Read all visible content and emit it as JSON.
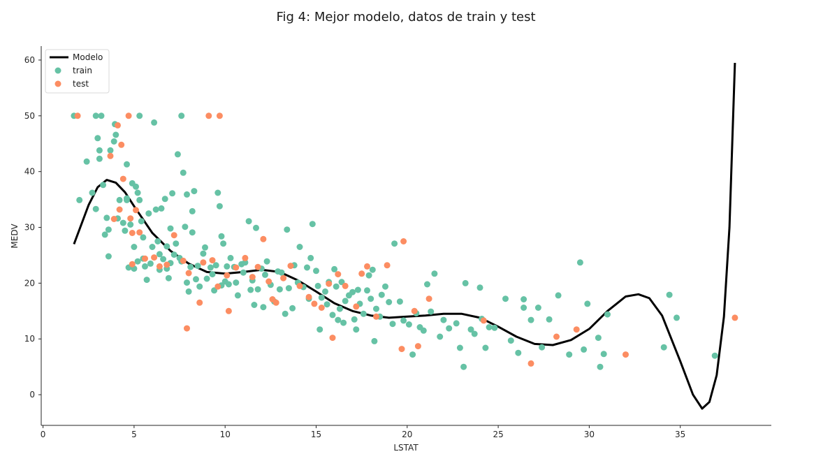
{
  "chart_data": {
    "type": "scatter",
    "title": "Fig 4: Mejor modelo, datos de train y test",
    "xlabel": "LSTAT",
    "ylabel": "MEDV",
    "xlim": [
      -0.1,
      40
    ],
    "ylim": [
      -5.5,
      62.5
    ],
    "xticks": [
      0,
      5,
      10,
      15,
      20,
      25,
      30,
      35
    ],
    "yticks": [
      0,
      10,
      20,
      30,
      40,
      50,
      60
    ],
    "grid": false,
    "legend": "top-left",
    "legend_entries": [
      "Modelo",
      "train",
      "test"
    ],
    "colors": {
      "model": "#000000",
      "train": "#66c2a5",
      "test": "#fc8d62"
    },
    "series": [
      {
        "name": "Modelo",
        "kind": "line",
        "points": [
          [
            1.7,
            27
          ],
          [
            2.5,
            34
          ],
          [
            3,
            37.2
          ],
          [
            3.5,
            38.5
          ],
          [
            4,
            38
          ],
          [
            4.5,
            36.3
          ],
          [
            5,
            33.8
          ],
          [
            6,
            29
          ],
          [
            7,
            25.8
          ],
          [
            8,
            23.5
          ],
          [
            9,
            22
          ],
          [
            10,
            21.7
          ],
          [
            11,
            22
          ],
          [
            12,
            22.4
          ],
          [
            13,
            22
          ],
          [
            14,
            20.5
          ],
          [
            15,
            18.5
          ],
          [
            16,
            16.4
          ],
          [
            17,
            15
          ],
          [
            18,
            14.2
          ],
          [
            19,
            13.8
          ],
          [
            20,
            14
          ],
          [
            21,
            14.2
          ],
          [
            22,
            14.5
          ],
          [
            23,
            14.5
          ],
          [
            24,
            13.8
          ],
          [
            25,
            12.2
          ],
          [
            26,
            10.4
          ],
          [
            27,
            9.1
          ],
          [
            28,
            8.9
          ],
          [
            29,
            9.8
          ],
          [
            30,
            11.8
          ],
          [
            31,
            15
          ],
          [
            32,
            17.6
          ],
          [
            32.7,
            18
          ],
          [
            33.3,
            17.3
          ],
          [
            34,
            14.2
          ],
          [
            35,
            6
          ],
          [
            35.7,
            0
          ],
          [
            36.2,
            -2.5
          ],
          [
            36.6,
            -1.3
          ],
          [
            37,
            3.5
          ],
          [
            37.4,
            14
          ],
          [
            37.7,
            30
          ],
          [
            38,
            59.5
          ]
        ]
      },
      {
        "name": "train",
        "kind": "scatter",
        "points": [
          [
            1.7,
            50
          ],
          [
            2,
            34.9
          ],
          [
            2.4,
            41.8
          ],
          [
            2.7,
            36.2
          ],
          [
            2.9,
            50
          ],
          [
            2.9,
            33.3
          ],
          [
            3,
            46
          ],
          [
            3.1,
            43.8
          ],
          [
            3.1,
            42.3
          ],
          [
            3.2,
            50
          ],
          [
            3.3,
            37.6
          ],
          [
            3.4,
            28.7
          ],
          [
            3.5,
            31.7
          ],
          [
            3.6,
            29.6
          ],
          [
            3.6,
            24.8
          ],
          [
            3.7,
            43.8
          ],
          [
            3.9,
            45.4
          ],
          [
            3.95,
            48.5
          ],
          [
            4,
            46.6
          ],
          [
            4.1,
            31.6
          ],
          [
            4.2,
            34.9
          ],
          [
            4.4,
            30.8
          ],
          [
            4.5,
            29.4
          ],
          [
            4.6,
            35.2
          ],
          [
            4.6,
            34.9
          ],
          [
            4.6,
            41.3
          ],
          [
            4.7,
            22.8
          ],
          [
            4.8,
            30.5
          ],
          [
            4.9,
            37.9
          ],
          [
            5,
            26.5
          ],
          [
            5,
            22.6
          ],
          [
            5.1,
            37.3
          ],
          [
            5.2,
            23.9
          ],
          [
            5.2,
            36.2
          ],
          [
            5.3,
            50
          ],
          [
            5.3,
            34.9
          ],
          [
            5.4,
            31.1
          ],
          [
            5.5,
            24.4
          ],
          [
            5.5,
            28.2
          ],
          [
            5.6,
            23
          ],
          [
            5.7,
            20.6
          ],
          [
            5.8,
            32.5
          ],
          [
            5.9,
            23.5
          ],
          [
            6,
            26.5
          ],
          [
            6.1,
            48.8
          ],
          [
            6.2,
            33.2
          ],
          [
            6.3,
            27.5
          ],
          [
            6.4,
            22.4
          ],
          [
            6.4,
            25.2
          ],
          [
            6.5,
            33.4
          ],
          [
            6.6,
            24.3
          ],
          [
            6.7,
            35.1
          ],
          [
            6.8,
            26.6
          ],
          [
            6.8,
            22.6
          ],
          [
            6.9,
            20.9
          ],
          [
            7,
            23.6
          ],
          [
            7,
            29.8
          ],
          [
            7.1,
            36.1
          ],
          [
            7.2,
            25.1
          ],
          [
            7.3,
            27.1
          ],
          [
            7.4,
            43.1
          ],
          [
            7.5,
            24.5
          ],
          [
            7.6,
            23.9
          ],
          [
            7.6,
            50
          ],
          [
            7.7,
            39.8
          ],
          [
            7.8,
            30.1
          ],
          [
            7.9,
            20.1
          ],
          [
            7.9,
            35.9
          ],
          [
            8,
            18.5
          ],
          [
            8.1,
            22.9
          ],
          [
            8.2,
            32.9
          ],
          [
            8.2,
            29.1
          ],
          [
            8.3,
            36.5
          ],
          [
            8.4,
            20.7
          ],
          [
            8.5,
            23.1
          ],
          [
            8.6,
            19.4
          ],
          [
            8.8,
            25.3
          ],
          [
            8.9,
            26.4
          ],
          [
            9,
            20.8
          ],
          [
            9.2,
            22.8
          ],
          [
            9.3,
            21.6
          ],
          [
            9.4,
            18.7
          ],
          [
            9.5,
            23.2
          ],
          [
            9.6,
            36.2
          ],
          [
            9.7,
            33.8
          ],
          [
            9.8,
            19.6
          ],
          [
            9.8,
            28.4
          ],
          [
            9.9,
            27.1
          ],
          [
            10,
            20.3
          ],
          [
            10.1,
            23
          ],
          [
            10.2,
            19.8
          ],
          [
            10.3,
            24.5
          ],
          [
            10.5,
            22.9
          ],
          [
            10.6,
            20.1
          ],
          [
            10.7,
            17.8
          ],
          [
            10.9,
            23.4
          ],
          [
            11,
            21.9
          ],
          [
            11.1,
            23.7
          ],
          [
            11.3,
            31.1
          ],
          [
            11.4,
            18.8
          ],
          [
            11.5,
            20.5
          ],
          [
            11.6,
            16.1
          ],
          [
            11.7,
            29.9
          ],
          [
            11.8,
            18.9
          ],
          [
            12,
            22.6
          ],
          [
            12.1,
            15.7
          ],
          [
            12.2,
            21.5
          ],
          [
            12.3,
            23.9
          ],
          [
            12.5,
            19.7
          ],
          [
            12.7,
            16.7
          ],
          [
            12.9,
            22.1
          ],
          [
            13,
            18.9
          ],
          [
            13.1,
            21.9
          ],
          [
            13.3,
            14.5
          ],
          [
            13.4,
            29.6
          ],
          [
            13.5,
            19.1
          ],
          [
            13.7,
            15.5
          ],
          [
            13.8,
            23.2
          ],
          [
            14,
            20.1
          ],
          [
            14.1,
            26.5
          ],
          [
            14.3,
            19.3
          ],
          [
            14.5,
            22.8
          ],
          [
            14.6,
            17.2
          ],
          [
            14.7,
            24.5
          ],
          [
            14.8,
            30.6
          ],
          [
            15,
            22.2
          ],
          [
            15.1,
            19.5
          ],
          [
            15.2,
            11.7
          ],
          [
            15.3,
            17.4
          ],
          [
            15.5,
            18.5
          ],
          [
            15.6,
            16.2
          ],
          [
            15.7,
            20.2
          ],
          [
            15.9,
            14.3
          ],
          [
            16,
            22.5
          ],
          [
            16.1,
            19.4
          ],
          [
            16.2,
            13.4
          ],
          [
            16.3,
            15.4
          ],
          [
            16.4,
            20.2
          ],
          [
            16.5,
            12.9
          ],
          [
            16.6,
            16.8
          ],
          [
            16.8,
            17.8
          ],
          [
            17,
            18.4
          ],
          [
            17.1,
            13.5
          ],
          [
            17.2,
            11.7
          ],
          [
            17.3,
            18.8
          ],
          [
            17.4,
            16.3
          ],
          [
            17.6,
            14.5
          ],
          [
            17.8,
            18.7
          ],
          [
            17.9,
            21.4
          ],
          [
            18,
            17.2
          ],
          [
            18.1,
            22.4
          ],
          [
            18.2,
            9.6
          ],
          [
            18.3,
            15.4
          ],
          [
            18.5,
            14
          ],
          [
            18.6,
            17.9
          ],
          [
            18.8,
            19.4
          ],
          [
            19,
            16.6
          ],
          [
            19.2,
            12.7
          ],
          [
            19.3,
            27.1
          ],
          [
            19.6,
            16.7
          ],
          [
            19.8,
            13.3
          ],
          [
            20.1,
            12.6
          ],
          [
            20.3,
            7.2
          ],
          [
            20.5,
            14.6
          ],
          [
            20.7,
            12.1
          ],
          [
            20.9,
            11.5
          ],
          [
            21.1,
            19.8
          ],
          [
            21.3,
            14.9
          ],
          [
            21.5,
            21.7
          ],
          [
            21.8,
            10.4
          ],
          [
            22,
            13.4
          ],
          [
            22.3,
            11.9
          ],
          [
            22.7,
            12.8
          ],
          [
            22.9,
            8.4
          ],
          [
            23.1,
            5
          ],
          [
            23.2,
            20
          ],
          [
            23.5,
            11.7
          ],
          [
            23.7,
            10.9
          ],
          [
            24,
            19.2
          ],
          [
            24.1,
            13.6
          ],
          [
            24.3,
            8.4
          ],
          [
            24.5,
            12.1
          ],
          [
            24.8,
            12
          ],
          [
            25.4,
            17.2
          ],
          [
            25.7,
            9.7
          ],
          [
            26.1,
            7.5
          ],
          [
            26.4,
            15.6
          ],
          [
            26.4,
            17.1
          ],
          [
            26.8,
            13.4
          ],
          [
            27.2,
            15.6
          ],
          [
            27.4,
            8.5
          ],
          [
            27.8,
            13.5
          ],
          [
            28.3,
            17.8
          ],
          [
            28.9,
            7.2
          ],
          [
            29.5,
            23.7
          ],
          [
            29.7,
            8.1
          ],
          [
            29.9,
            16.3
          ],
          [
            30.5,
            10.2
          ],
          [
            30.6,
            5
          ],
          [
            30.8,
            7.3
          ],
          [
            31,
            14.4
          ],
          [
            34.1,
            8.5
          ],
          [
            34.4,
            17.9
          ],
          [
            34.8,
            13.8
          ],
          [
            36.9,
            7
          ]
        ]
      },
      {
        "name": "test",
        "kind": "scatter",
        "points": [
          [
            1.9,
            50
          ],
          [
            3.7,
            42.8
          ],
          [
            3.9,
            31.5
          ],
          [
            4.1,
            48.3
          ],
          [
            4.2,
            33.2
          ],
          [
            4.3,
            44.8
          ],
          [
            4.4,
            38.7
          ],
          [
            4.7,
            50
          ],
          [
            4.8,
            31.6
          ],
          [
            4.9,
            29
          ],
          [
            4.9,
            23.4
          ],
          [
            5.1,
            33.1
          ],
          [
            5.3,
            29.1
          ],
          [
            5.6,
            24.4
          ],
          [
            6.1,
            24.6
          ],
          [
            6.4,
            23
          ],
          [
            6.8,
            23.3
          ],
          [
            7.2,
            28.6
          ],
          [
            7.7,
            24
          ],
          [
            7.9,
            11.9
          ],
          [
            8,
            21.8
          ],
          [
            8.6,
            16.5
          ],
          [
            8.8,
            23.7
          ],
          [
            9.1,
            50
          ],
          [
            9.3,
            24.1
          ],
          [
            9.6,
            19.4
          ],
          [
            9.7,
            50
          ],
          [
            10.1,
            21.4
          ],
          [
            10.2,
            15
          ],
          [
            10.6,
            22.8
          ],
          [
            11.1,
            24.5
          ],
          [
            11.5,
            21.1
          ],
          [
            11.8,
            22.9
          ],
          [
            12.1,
            27.9
          ],
          [
            12.4,
            20.3
          ],
          [
            12.6,
            17.1
          ],
          [
            12.8,
            16.5
          ],
          [
            13.2,
            20.9
          ],
          [
            13.6,
            23.1
          ],
          [
            14.1,
            19.5
          ],
          [
            14.6,
            17.5
          ],
          [
            14.9,
            16.3
          ],
          [
            15.3,
            15.6
          ],
          [
            15.7,
            19.9
          ],
          [
            15.9,
            10.2
          ],
          [
            16.2,
            21.6
          ],
          [
            16.6,
            19.5
          ],
          [
            17.2,
            15.8
          ],
          [
            17.5,
            21.7
          ],
          [
            17.8,
            23
          ],
          [
            18.3,
            14
          ],
          [
            18.9,
            23.2
          ],
          [
            19.7,
            8.2
          ],
          [
            19.8,
            27.5
          ],
          [
            20.4,
            15
          ],
          [
            20.6,
            8.7
          ],
          [
            21.2,
            17.2
          ],
          [
            24.2,
            13.3
          ],
          [
            26.8,
            5.6
          ],
          [
            28.2,
            10.4
          ],
          [
            29.3,
            11.7
          ],
          [
            32,
            7.2
          ],
          [
            38,
            13.8
          ]
        ]
      }
    ]
  }
}
